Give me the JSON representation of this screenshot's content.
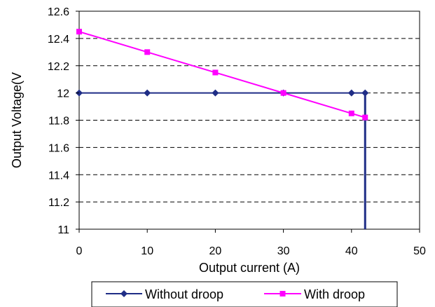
{
  "chart_data": {
    "type": "line",
    "xlabel": "Output current (A)",
    "ylabel": "Output Voltage(V",
    "xlim": [
      0,
      50
    ],
    "ylim": [
      11,
      12.6
    ],
    "x_ticks": [
      "0",
      "10",
      "20",
      "30",
      "40",
      "50"
    ],
    "y_ticks": [
      "11",
      "11.2",
      "11.4",
      "11.6",
      "11.8",
      "12",
      "12.2",
      "12.4",
      "12.6"
    ],
    "grid": "horizontal dashed",
    "legend_position": "bottom",
    "series": [
      {
        "name": "Without droop",
        "color": "#1F2D86",
        "marker": "diamond",
        "points": [
          {
            "x": 0,
            "y": 12.0
          },
          {
            "x": 10,
            "y": 12.0
          },
          {
            "x": 20,
            "y": 12.0
          },
          {
            "x": 30,
            "y": 12.0
          },
          {
            "x": 40,
            "y": 12.0
          },
          {
            "x": 42,
            "y": 12.0
          }
        ],
        "tail": [
          {
            "x": 42,
            "y": 12.0
          },
          {
            "x": 42,
            "y": 11.0
          }
        ]
      },
      {
        "name": "With droop",
        "color": "#FF00FF",
        "marker": "square",
        "points": [
          {
            "x": 0,
            "y": 12.45
          },
          {
            "x": 10,
            "y": 12.3
          },
          {
            "x": 20,
            "y": 12.15
          },
          {
            "x": 30,
            "y": 12.0
          },
          {
            "x": 40,
            "y": 11.85
          },
          {
            "x": 42,
            "y": 11.82
          }
        ]
      }
    ]
  }
}
